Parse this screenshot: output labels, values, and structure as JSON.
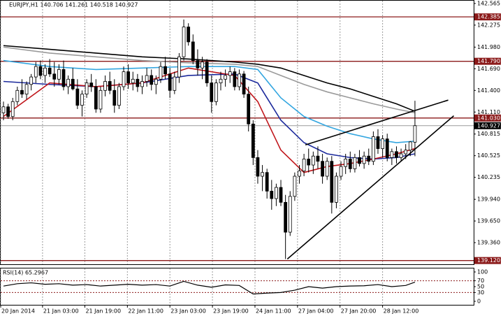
{
  "chart_data": {
    "type": "candlestick",
    "title": "EURJPY,H1  140.706 141.261 140.518 140.927",
    "xlim": [
      -0.6,
      101.7
    ],
    "ylim": [
      139.07,
      142.602
    ],
    "yticks": [
      142.565,
      142.275,
      {
        "value": 141.98,
        "label": "141.980"
      },
      {
        "value": 141.69,
        "label": "141.690"
      },
      {
        "value": 141.4,
        "label": "141.400"
      },
      {
        "value": 141.11,
        "label": "141.110"
      },
      140.815,
      140.525,
      140.235,
      {
        "value": 139.94,
        "label": "139.940"
      },
      {
        "value": 139.65,
        "label": "139.650"
      },
      {
        "value": 139.36,
        "label": "139.360"
      }
    ],
    "xticks": [
      {
        "value": -0.6,
        "label": "20 Jan 2014"
      },
      {
        "value": 8.45,
        "label": "21 Jan 03:00"
      },
      {
        "value": 17.6,
        "label": "21 Jan 19:00"
      },
      {
        "value": 26.8,
        "label": "22 Jan 11:00"
      },
      {
        "value": 36,
        "label": "23 Jan 03:00"
      },
      {
        "value": 45.2,
        "label": "23 Jan 19:00"
      },
      {
        "value": 54.4,
        "label": "24 Jan 11:00"
      },
      {
        "value": 63.6,
        "label": "27 Jan 04:00"
      },
      {
        "value": 72.8,
        "label": "27 Jan 20:00"
      },
      {
        "value": 82,
        "label": "28 Jan 12:00"
      }
    ],
    "levels": [
      142.385,
      {
        "value": 141.79,
        "label": "141.790"
      },
      {
        "value": 141.03,
        "label": "141.030"
      },
      {
        "value": 139.12,
        "label": "139.120"
      }
    ],
    "level_color": "#8b1a1a",
    "last_price": 140.927,
    "candles": [
      [
        141.1,
        141.25,
        141.0,
        141.18
      ],
      [
        141.18,
        141.22,
        141.02,
        141.05
      ],
      [
        141.05,
        141.3,
        141.0,
        141.25
      ],
      [
        141.25,
        141.45,
        141.2,
        141.4
      ],
      [
        141.4,
        141.55,
        141.3,
        141.35
      ],
      [
        141.35,
        141.52,
        141.28,
        141.48
      ],
      [
        141.48,
        141.62,
        141.4,
        141.58
      ],
      [
        141.58,
        141.78,
        141.5,
        141.72
      ],
      [
        141.72,
        141.8,
        141.55,
        141.6
      ],
      [
        141.6,
        141.75,
        141.5,
        141.7
      ],
      [
        141.7,
        141.82,
        141.58,
        141.62
      ],
      [
        141.62,
        141.78,
        141.45,
        141.55
      ],
      [
        141.55,
        141.75,
        141.48,
        141.68
      ],
      [
        141.68,
        141.8,
        141.4,
        141.45
      ],
      [
        141.45,
        141.6,
        141.35,
        141.55
      ],
      [
        141.55,
        141.7,
        141.4,
        141.42
      ],
      [
        141.42,
        141.55,
        141.15,
        141.2
      ],
      [
        141.2,
        141.4,
        141.05,
        141.35
      ],
      [
        141.35,
        141.55,
        141.3,
        141.5
      ],
      [
        141.5,
        141.62,
        141.38,
        141.45
      ],
      [
        141.45,
        141.55,
        141.1,
        141.15
      ],
      [
        141.15,
        141.45,
        141.1,
        141.4
      ],
      [
        141.4,
        141.6,
        141.32,
        141.52
      ],
      [
        141.52,
        141.65,
        141.35,
        141.4
      ],
      [
        141.4,
        141.55,
        141.1,
        141.2
      ],
      [
        141.2,
        141.5,
        141.15,
        141.45
      ],
      [
        141.45,
        141.72,
        141.4,
        141.65
      ],
      [
        141.65,
        141.75,
        141.42,
        141.5
      ],
      [
        141.5,
        141.65,
        141.4,
        141.55
      ],
      [
        141.55,
        141.62,
        141.38,
        141.45
      ],
      [
        141.45,
        141.6,
        141.35,
        141.52
      ],
      [
        141.52,
        141.7,
        141.45,
        141.6
      ],
      [
        141.6,
        141.68,
        141.4,
        141.48
      ],
      [
        141.48,
        141.6,
        141.35,
        141.55
      ],
      [
        141.55,
        141.78,
        141.5,
        141.72
      ],
      [
        141.72,
        141.85,
        141.55,
        141.62
      ],
      [
        141.62,
        141.7,
        141.3,
        141.4
      ],
      [
        141.4,
        141.65,
        141.35,
        141.58
      ],
      [
        141.58,
        141.9,
        141.5,
        141.85
      ],
      [
        141.85,
        142.35,
        141.8,
        142.25
      ],
      [
        142.25,
        142.3,
        142.0,
        142.05
      ],
      [
        142.05,
        142.15,
        141.75,
        141.8
      ],
      [
        141.8,
        141.95,
        141.6,
        141.7
      ],
      [
        141.7,
        141.85,
        141.55,
        141.78
      ],
      [
        141.78,
        141.82,
        141.45,
        141.5
      ],
      [
        141.5,
        141.6,
        141.1,
        141.25
      ],
      [
        141.25,
        141.55,
        141.2,
        141.5
      ],
      [
        141.5,
        141.65,
        141.4,
        141.55
      ],
      [
        141.55,
        141.68,
        141.45,
        141.6
      ],
      [
        141.6,
        141.72,
        141.5,
        141.65
      ],
      [
        141.65,
        141.7,
        141.4,
        141.45
      ],
      [
        141.45,
        141.68,
        141.4,
        141.62
      ],
      [
        141.62,
        141.66,
        141.3,
        141.35
      ],
      [
        141.35,
        141.45,
        140.85,
        140.95
      ],
      [
        140.95,
        141.0,
        140.4,
        140.5
      ],
      [
        140.5,
        140.6,
        140.15,
        140.25
      ],
      [
        140.25,
        140.4,
        140.05,
        140.3
      ],
      [
        140.3,
        140.35,
        139.95,
        140.05
      ],
      [
        140.05,
        140.2,
        139.8,
        139.95
      ],
      [
        139.95,
        140.15,
        139.85,
        140.1
      ],
      [
        140.1,
        140.2,
        139.85,
        139.9
      ],
      [
        139.9,
        140.0,
        139.14,
        139.5
      ],
      [
        139.5,
        140.05,
        139.45,
        139.98
      ],
      [
        139.98,
        140.3,
        139.92,
        140.25
      ],
      [
        140.25,
        140.4,
        140.15,
        140.32
      ],
      [
        140.32,
        140.55,
        140.25,
        140.48
      ],
      [
        140.48,
        140.62,
        140.3,
        140.4
      ],
      [
        140.4,
        140.58,
        140.28,
        140.52
      ],
      [
        140.52,
        140.65,
        140.35,
        140.45
      ],
      [
        140.45,
        140.55,
        140.15,
        140.25
      ],
      [
        140.25,
        140.5,
        140.2,
        140.45
      ],
      [
        140.45,
        140.52,
        139.75,
        139.9
      ],
      [
        139.9,
        140.3,
        139.82,
        140.25
      ],
      [
        140.25,
        140.45,
        140.2,
        140.38
      ],
      [
        140.38,
        140.55,
        140.28,
        140.48
      ],
      [
        140.48,
        140.58,
        140.3,
        140.35
      ],
      [
        140.35,
        140.55,
        140.3,
        140.5
      ],
      [
        140.5,
        140.6,
        140.38,
        140.42
      ],
      [
        140.42,
        140.58,
        140.35,
        140.52
      ],
      [
        140.52,
        140.62,
        140.4,
        140.45
      ],
      [
        140.45,
        140.85,
        140.4,
        140.78
      ],
      [
        140.78,
        140.88,
        140.55,
        140.62
      ],
      [
        140.62,
        140.8,
        140.5,
        140.75
      ],
      [
        140.75,
        140.82,
        140.45,
        140.5
      ],
      [
        140.5,
        140.62,
        140.4,
        140.58
      ],
      [
        140.58,
        140.65,
        140.42,
        140.5
      ],
      [
        140.5,
        140.62,
        140.45,
        140.55
      ],
      [
        140.55,
        140.68,
        140.48,
        140.6
      ],
      [
        140.6,
        140.72,
        140.52,
        140.71
      ],
      [
        140.706,
        141.261,
        140.518,
        140.927
      ]
    ],
    "series": [
      {
        "color": "#000000",
        "x": [
          0,
          10,
          20,
          30,
          40,
          50,
          55,
          60,
          65,
          70,
          75,
          80,
          85,
          89
        ],
        "values": [
          142.0,
          141.95,
          141.9,
          141.85,
          141.82,
          141.78,
          141.75,
          141.7,
          141.6,
          141.5,
          141.42,
          141.32,
          141.22,
          141.12
        ]
      },
      {
        "color": "#9a9a9a",
        "x": [
          0,
          10,
          20,
          30,
          40,
          50,
          55,
          60,
          65,
          70,
          75,
          80,
          85,
          89
        ],
        "values": [
          141.98,
          141.9,
          141.85,
          141.8,
          141.77,
          141.75,
          141.72,
          141.6,
          141.48,
          141.38,
          141.3,
          141.22,
          141.15,
          141.1
        ]
      },
      {
        "color": "#33a6e0",
        "x": [
          0,
          10,
          20,
          30,
          40,
          50,
          55,
          60,
          65,
          70,
          75,
          80,
          85,
          89
        ],
        "values": [
          141.8,
          141.72,
          141.68,
          141.7,
          141.72,
          141.72,
          141.68,
          141.3,
          141.05,
          140.92,
          140.82,
          140.75,
          140.7,
          140.72
        ]
      },
      {
        "color": "#1c2a9c",
        "x": [
          0,
          10,
          20,
          30,
          40,
          50,
          55,
          60,
          65,
          70,
          75,
          80,
          85,
          89
        ],
        "values": [
          141.52,
          141.48,
          141.45,
          141.5,
          141.6,
          141.62,
          141.5,
          141.0,
          140.7,
          140.55,
          140.5,
          140.48,
          140.5,
          140.55
        ]
      },
      {
        "color": "#c0161b",
        "x": [
          0,
          10,
          20,
          30,
          40,
          50,
          55,
          60,
          65,
          70,
          75,
          80,
          85,
          89
        ],
        "values": [
          141.05,
          141.5,
          141.45,
          141.5,
          141.7,
          141.6,
          141.25,
          140.6,
          140.3,
          140.38,
          140.42,
          140.48,
          140.55,
          140.62
        ]
      }
    ],
    "trendlines": [
      {
        "x": [
          61.4,
          97.4
        ],
        "y": [
          139.14,
          141.06
        ]
      },
      {
        "x": [
          65.3,
          96.2
        ],
        "y": [
          140.67,
          141.27
        ]
      }
    ],
    "rsi": {
      "label": "RSI(14) 65.2967",
      "ylim": [
        0,
        100
      ],
      "yticks": [
        100,
        70,
        50,
        30,
        0
      ],
      "levels": [
        70,
        30
      ],
      "x": [
        0,
        3,
        6,
        9,
        12,
        15,
        18,
        21,
        24,
        27,
        30,
        33,
        36,
        39,
        42,
        45,
        48,
        51,
        54,
        57,
        60,
        63,
        66,
        69,
        72,
        75,
        78,
        81,
        84,
        87,
        89
      ],
      "values": [
        52,
        60,
        63,
        58,
        60,
        55,
        57,
        52,
        55,
        58,
        55,
        57,
        52,
        68,
        55,
        48,
        56,
        54,
        25,
        28,
        30,
        38,
        50,
        45,
        50,
        52,
        53,
        57,
        50,
        54,
        65.3
      ]
    }
  }
}
